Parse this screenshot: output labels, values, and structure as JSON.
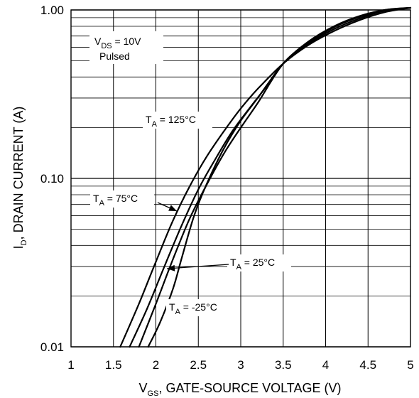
{
  "chart_data": {
    "type": "line",
    "xlabel": {
      "main": "V",
      "sub": "GS",
      "rest": ", GATE-SOURCE VOLTAGE (V)"
    },
    "ylabel": {
      "main": "I",
      "sub": "D",
      "rest": ", DRAIN CURRENT (A)"
    },
    "x_scale": "linear",
    "y_scale": "log",
    "xlim": [
      1,
      5
    ],
    "ylim": [
      0.01,
      1.0
    ],
    "grid": true,
    "x_ticks": [
      1,
      1.5,
      2,
      2.5,
      3,
      3.5,
      4,
      4.5,
      5
    ],
    "x_tick_labels": [
      "1",
      "1.5",
      "2",
      "2.5",
      "3",
      "3.5",
      "4",
      "4.5",
      "5"
    ],
    "y_ticks": [
      0.01,
      0.1,
      1.0
    ],
    "y_tick_labels": [
      "0.01",
      "0.10",
      "1.00"
    ],
    "conditions": {
      "vds": {
        "main": "V",
        "sub": "DS",
        "rest": " = 10V"
      },
      "mode": "Pulsed"
    },
    "series": [
      {
        "name": "T_A = 125°C",
        "label": {
          "main": "T",
          "sub": "A",
          "rest": " = 125°C"
        },
        "x": [
          1.58,
          1.8,
          2.0,
          2.2,
          2.4,
          2.6,
          2.8,
          3.0,
          3.2,
          3.5,
          3.8,
          4.1,
          4.4,
          4.7,
          5.0
        ],
        "y": [
          0.01,
          0.018,
          0.032,
          0.056,
          0.09,
          0.135,
          0.19,
          0.26,
          0.34,
          0.48,
          0.62,
          0.75,
          0.87,
          0.97,
          1.03
        ]
      },
      {
        "name": "T_A = 75°C",
        "label": {
          "main": "T",
          "sub": "A",
          "rest": " = 75°C"
        },
        "x": [
          1.69,
          1.9,
          2.1,
          2.3,
          2.5,
          2.7,
          2.9,
          3.1,
          3.3,
          3.5,
          3.8,
          4.1,
          4.4,
          4.7,
          5.0
        ],
        "y": [
          0.01,
          0.017,
          0.03,
          0.052,
          0.086,
          0.13,
          0.19,
          0.26,
          0.35,
          0.48,
          0.63,
          0.77,
          0.89,
          0.99,
          1.03
        ]
      },
      {
        "name": "T_A = 25°C",
        "label": {
          "main": "T",
          "sub": "A",
          "rest": " = 25°C"
        },
        "x": [
          1.8,
          2.0,
          2.2,
          2.4,
          2.6,
          2.8,
          3.0,
          3.2,
          3.5,
          3.8,
          4.1,
          4.4,
          4.7,
          5.0
        ],
        "y": [
          0.01,
          0.018,
          0.033,
          0.058,
          0.092,
          0.14,
          0.2,
          0.28,
          0.48,
          0.64,
          0.79,
          0.91,
          1.0,
          1.03
        ]
      },
      {
        "name": "T_A = -25°C",
        "label": {
          "main": "T",
          "sub": "A",
          "rest": " = -25°C"
        },
        "x": [
          1.91,
          2.05,
          2.2,
          2.3,
          2.45,
          2.6,
          2.8,
          3.0,
          3.2,
          3.5,
          3.8,
          4.1,
          4.4,
          4.7,
          5.0
        ],
        "y": [
          0.01,
          0.014,
          0.022,
          0.033,
          0.06,
          0.093,
          0.15,
          0.22,
          0.3,
          0.48,
          0.65,
          0.8,
          0.92,
          1.0,
          1.03
        ]
      }
    ],
    "colors": {
      "line": "#000000",
      "grid": "#000000",
      "background": "#ffffff"
    }
  }
}
